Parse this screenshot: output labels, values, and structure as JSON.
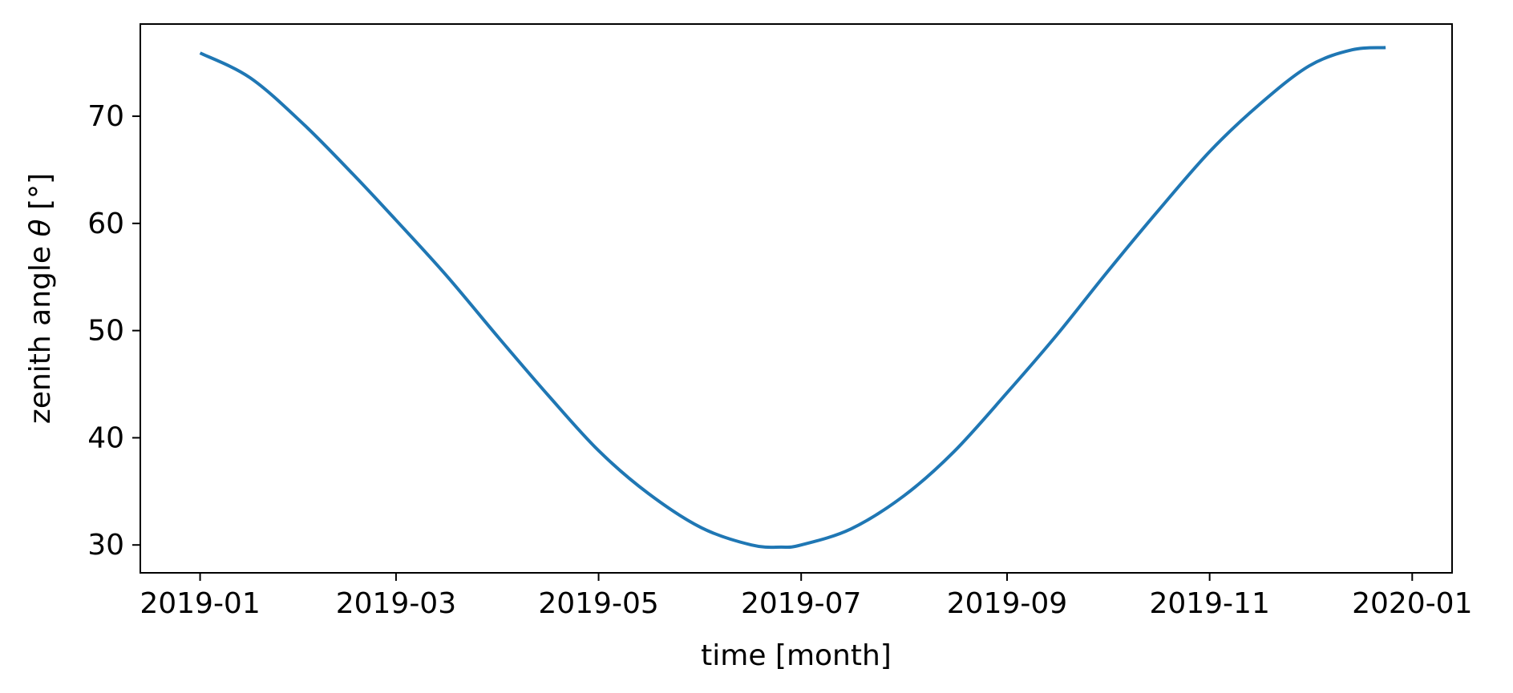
{
  "chart_data": {
    "type": "line",
    "title": "",
    "xlabel": "time [month]",
    "ylabel_prefix": "zenith angle ",
    "ylabel_symbol": "θ",
    "ylabel_suffix": " [°]",
    "x_axis_type": "date",
    "xlim": [
      "2018-12-14",
      "2020-01-13"
    ],
    "ylim": [
      27.4,
      78.6
    ],
    "grid": false,
    "legend": "none",
    "x_ticks": [
      "2019-01-01",
      "2019-03-01",
      "2019-05-01",
      "2019-07-01",
      "2019-09-01",
      "2019-11-01",
      "2020-01-01"
    ],
    "x_tick_labels": [
      "2019-01",
      "2019-03",
      "2019-05",
      "2019-07",
      "2019-09",
      "2019-11",
      "2020-01"
    ],
    "y_ticks": [
      30,
      40,
      50,
      60,
      70
    ],
    "y_tick_labels": [
      "30",
      "40",
      "50",
      "60",
      "70"
    ],
    "series": [
      {
        "color": "#1f77b4",
        "x": [
          "2019-01-01",
          "2019-01-16",
          "2019-02-01",
          "2019-02-16",
          "2019-03-01",
          "2019-03-16",
          "2019-04-01",
          "2019-04-16",
          "2019-05-01",
          "2019-05-16",
          "2019-06-01",
          "2019-06-16",
          "2019-06-25",
          "2019-07-01",
          "2019-07-16",
          "2019-08-01",
          "2019-08-16",
          "2019-09-01",
          "2019-09-16",
          "2019-10-01",
          "2019-10-16",
          "2019-11-01",
          "2019-11-16",
          "2019-12-01",
          "2019-12-14",
          "2019-12-24"
        ],
        "y": [
          75.9,
          73.6,
          69.3,
          64.6,
          60.3,
          55.2,
          49.3,
          43.9,
          38.8,
          34.8,
          31.6,
          30.0,
          29.8,
          30.0,
          31.5,
          34.6,
          38.7,
          44.2,
          49.6,
          55.4,
          61.0,
          66.7,
          71.1,
          74.7,
          76.2,
          76.4
        ]
      }
    ]
  }
}
